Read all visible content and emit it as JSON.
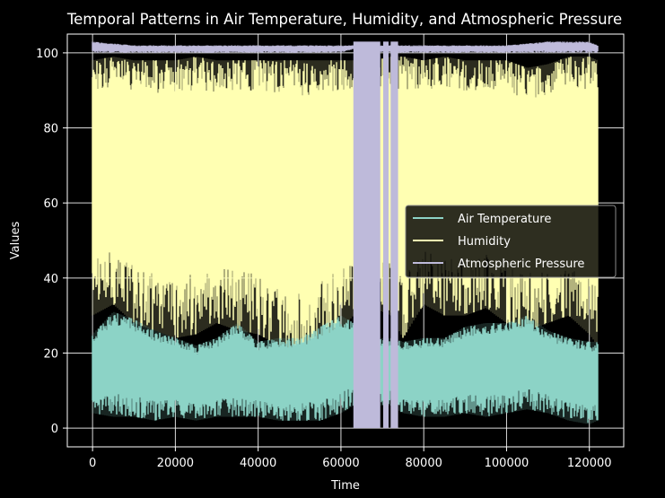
{
  "chart_data": {
    "type": "line",
    "title": "Temporal Patterns in Air Temperature, Humidity, and Atmospheric Pressure",
    "xlabel": "Time",
    "ylabel": "Values",
    "xlim": [
      -6100,
      128300
    ],
    "ylim": [
      -5,
      105
    ],
    "xticks": [
      0,
      20000,
      40000,
      60000,
      80000,
      100000,
      120000
    ],
    "xtick_labels": [
      "0",
      "20000",
      "40000",
      "60000",
      "80000",
      "100000",
      "120000"
    ],
    "yticks": [
      0,
      20,
      40,
      60,
      80,
      100
    ],
    "ytick_labels": [
      "0",
      "20",
      "40",
      "60",
      "80",
      "100"
    ],
    "grid": true,
    "legend_position": "center-right",
    "series": [
      {
        "name": "Air Temperature",
        "color": "#8dd3c7",
        "x": [
          0,
          5000,
          10000,
          15000,
          20000,
          25000,
          30000,
          35000,
          40000,
          45000,
          50000,
          55000,
          60000,
          63000,
          68000,
          72000,
          75000,
          80000,
          85000,
          90000,
          95000,
          100000,
          105000,
          110000,
          115000,
          120000,
          122000
        ],
        "low": [
          4,
          3,
          3,
          2,
          3,
          2,
          3,
          3,
          3,
          2,
          2,
          2,
          4,
          6,
          6,
          6,
          4,
          3,
          3,
          4,
          3,
          4,
          5,
          4,
          2,
          1,
          2
        ],
        "high": [
          25,
          31,
          29,
          26,
          24,
          22,
          24,
          28,
          23,
          24,
          24,
          27,
          30,
          28,
          24,
          24,
          23,
          24,
          24,
          27,
          28,
          28,
          30,
          26,
          24,
          23,
          23
        ]
      },
      {
        "name": "Humidity",
        "color": "#ffffb3",
        "x": [
          0,
          5000,
          10000,
          15000,
          20000,
          25000,
          30000,
          35000,
          40000,
          45000,
          50000,
          55000,
          60000,
          63000,
          68000,
          72000,
          75000,
          80000,
          85000,
          90000,
          95000,
          100000,
          105000,
          110000,
          115000,
          120000,
          122000
        ],
        "low": [
          30,
          33,
          28,
          26,
          24,
          25,
          28,
          26,
          25,
          22,
          19,
          24,
          26,
          30,
          32,
          30,
          24,
          33,
          30,
          30,
          32,
          28,
          26,
          28,
          30,
          25,
          22
        ],
        "high": [
          98,
          99,
          98,
          98,
          98,
          99,
          98,
          98,
          98,
          98,
          98,
          98,
          98,
          98,
          98,
          99,
          99,
          98,
          99,
          98,
          98,
          98,
          96,
          97,
          99,
          99,
          98
        ]
      },
      {
        "name": "Atmospheric Pressure",
        "color": "#bebada",
        "x": [
          0,
          10000,
          20000,
          30000,
          40000,
          50000,
          60000,
          63000,
          70000,
          75000,
          80000,
          90000,
          100000,
          110000,
          115000,
          120000,
          122000
        ],
        "low": [
          100,
          100,
          100,
          100,
          100,
          100,
          100,
          101,
          100,
          100,
          100,
          100,
          100,
          100,
          100,
          100,
          100
        ],
        "high": [
          103,
          102,
          102,
          102,
          102,
          102,
          102,
          102,
          102,
          102,
          102,
          102,
          102,
          103,
          103,
          103,
          102
        ],
        "drop_intervals": [
          [
            63000,
            69500
          ],
          [
            70200,
            71500
          ],
          [
            72000,
            73800
          ]
        ],
        "drop_to": 0
      }
    ]
  }
}
